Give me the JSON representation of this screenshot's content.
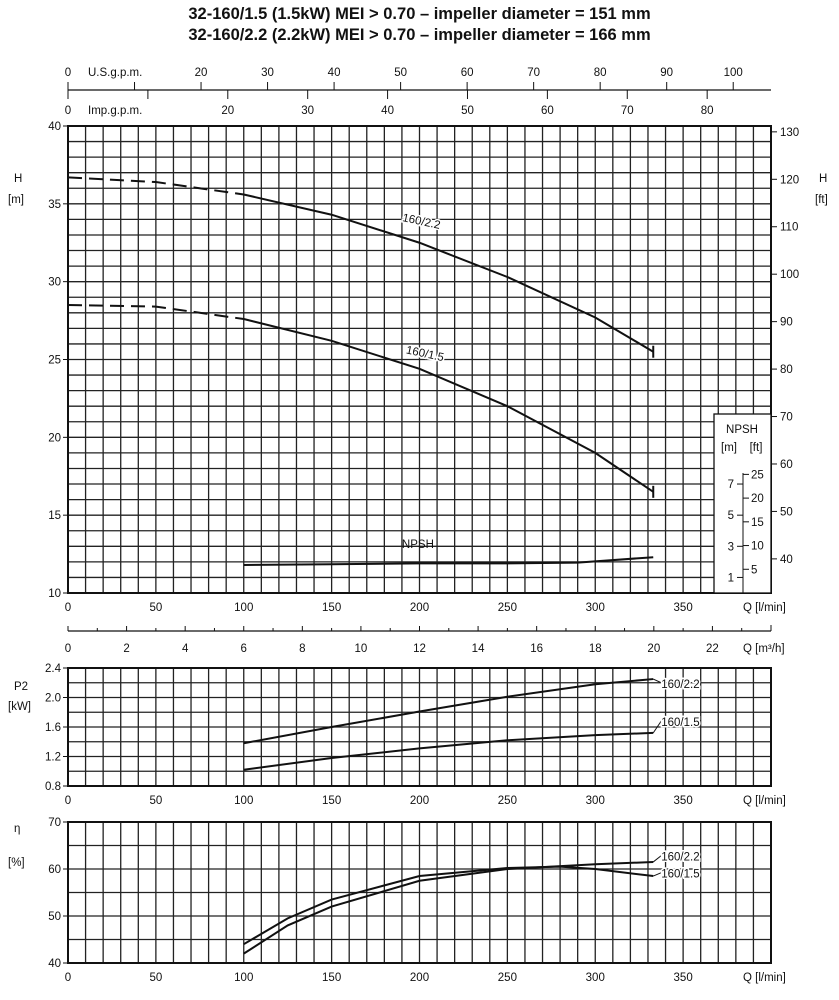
{
  "titles": [
    "32-160/1.5 (1.5kW) MEI > 0.70 – impeller diameter = 151 mm",
    "32-160/2.2 (2.2kW) MEI > 0.70 – impeller diameter = 166 mm"
  ],
  "top_axes": {
    "us_gpm": {
      "label": "U.S.g.p.m.",
      "ticks": [
        0,
        20,
        30,
        40,
        50,
        60,
        70,
        80,
        90,
        100
      ]
    },
    "imp_gpm": {
      "label": "Imp.g.p.m.",
      "ticks": [
        0,
        20,
        30,
        40,
        50,
        60,
        70,
        80
      ]
    }
  },
  "flow_axis_label": "Q [l/min]",
  "m3h_axis": {
    "label": "Q [m³/h]",
    "ticks": [
      0,
      2,
      4,
      6,
      8,
      10,
      12,
      14,
      16,
      18,
      20,
      22
    ]
  },
  "chart_data": [
    {
      "type": "line",
      "ylabel": "H [m]",
      "y2label": "H [ft]",
      "xlabel": "Q [l/min]",
      "xlim": [
        0,
        400
      ],
      "ylim": [
        10,
        40
      ],
      "xticks": [
        0,
        50,
        100,
        150,
        200,
        250,
        300,
        350
      ],
      "yticks": [
        10,
        15,
        20,
        25,
        30,
        35,
        40
      ],
      "y2ticks": [
        40,
        50,
        60,
        70,
        80,
        90,
        100,
        110,
        120,
        130
      ],
      "grid": true,
      "series": [
        {
          "name": "160/2.2",
          "dashed_until": 100,
          "x": [
            0,
            50,
            100,
            150,
            200,
            250,
            300,
            333
          ],
          "y": [
            36.7,
            36.4,
            35.6,
            34.3,
            32.5,
            30.3,
            27.7,
            25.5
          ]
        },
        {
          "name": "160/1.5",
          "dashed_until": 100,
          "x": [
            0,
            50,
            100,
            150,
            200,
            250,
            300,
            333
          ],
          "y": [
            28.5,
            28.4,
            27.6,
            26.2,
            24.4,
            22.0,
            19.0,
            16.5
          ]
        },
        {
          "name": "NPSH",
          "x": [
            100,
            150,
            200,
            250,
            290,
            333
          ],
          "y": [
            11.8,
            11.85,
            11.9,
            11.9,
            11.95,
            12.3
          ]
        }
      ],
      "npsh_inset": {
        "title": "NPSH",
        "units": [
          "[m]",
          "[ft]"
        ],
        "m_ticks": [
          1,
          3,
          5,
          7
        ],
        "ft_ticks": [
          5,
          10,
          15,
          20,
          25
        ]
      }
    },
    {
      "type": "line",
      "ylabel": "P2 [kW]",
      "xlabel": "Q [l/min]",
      "xlim": [
        0,
        400
      ],
      "ylim": [
        0.8,
        2.4
      ],
      "xticks": [
        0,
        50,
        100,
        150,
        200,
        250,
        300,
        350
      ],
      "yticks": [
        0.8,
        1.2,
        1.6,
        2.0,
        2.4
      ],
      "grid": true,
      "series": [
        {
          "name": "160/2.2",
          "x": [
            100,
            150,
            200,
            250,
            300,
            333
          ],
          "y": [
            1.38,
            1.6,
            1.81,
            2.01,
            2.18,
            2.25
          ]
        },
        {
          "name": "160/1.5",
          "x": [
            100,
            150,
            200,
            250,
            300,
            333
          ],
          "y": [
            1.02,
            1.18,
            1.31,
            1.42,
            1.49,
            1.52
          ]
        }
      ]
    },
    {
      "type": "line",
      "ylabel": "η [%]",
      "xlabel": "Q [l/min]",
      "xlim": [
        0,
        400
      ],
      "ylim": [
        40,
        70
      ],
      "xticks": [
        0,
        50,
        100,
        150,
        200,
        250,
        300,
        350
      ],
      "yticks": [
        40,
        50,
        60,
        70
      ],
      "grid": true,
      "series": [
        {
          "name": "160/2.2",
          "x": [
            100,
            125,
            150,
            200,
            250,
            300,
            333
          ],
          "y": [
            42,
            48,
            52,
            57.5,
            60,
            61,
            61.5
          ]
        },
        {
          "name": "160/1.5",
          "x": [
            100,
            125,
            150,
            200,
            250,
            280,
            300,
            333
          ],
          "y": [
            44,
            49.5,
            53.5,
            58.5,
            60.2,
            60.5,
            60,
            58.5
          ]
        }
      ]
    }
  ]
}
